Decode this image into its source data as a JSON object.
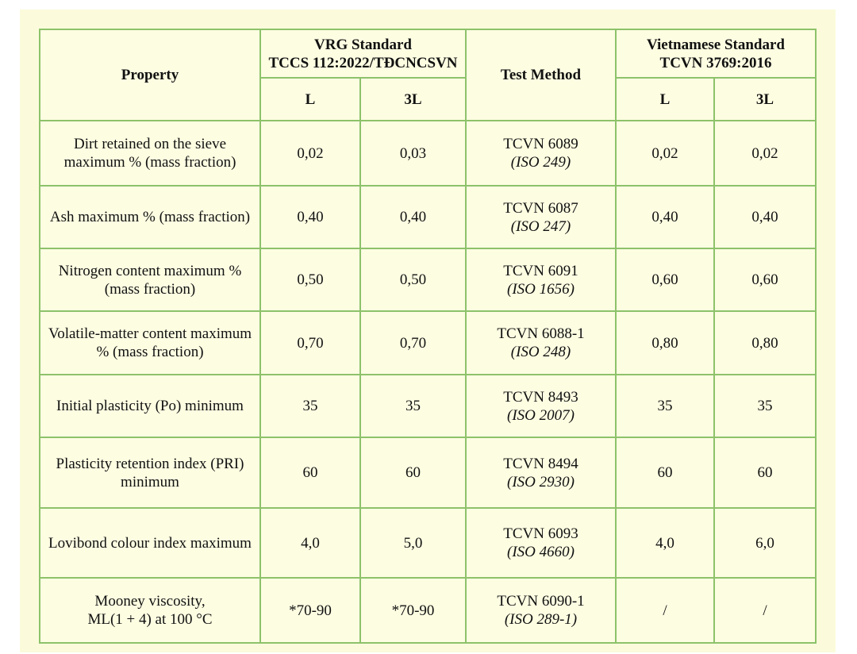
{
  "header": {
    "property": "Property",
    "vrg_title": "VRG Standard",
    "vrg_code": "TCCS 112:2022/TĐCNCSVN",
    "test_method": "Test Method",
    "vn_title": "Vietnamese Standard",
    "vn_code": "TCVN 3769:2016",
    "sub": [
      "L",
      "3L",
      "L",
      "3L"
    ]
  },
  "rows": [
    {
      "prop": [
        "Dirt retained on the sieve",
        "maximum % (mass fraction)"
      ],
      "vrg_l": "0,02",
      "vrg_3l": "0,03",
      "method": "TCVN 6089",
      "iso": "(ISO 249)",
      "vn_l": "0,02",
      "vn_3l": "0,02"
    },
    {
      "prop": [
        "Ash maximum % (mass fraction)"
      ],
      "vrg_l": "0,40",
      "vrg_3l": "0,40",
      "method": "TCVN 6087",
      "iso": "(ISO 247)",
      "vn_l": "0,40",
      "vn_3l": "0,40"
    },
    {
      "prop": [
        "Nitrogen content maximum %",
        "(mass fraction)"
      ],
      "vrg_l": "0,50",
      "vrg_3l": "0,50",
      "method": "TCVN 6091",
      "iso": "(ISO 1656)",
      "vn_l": "0,60",
      "vn_3l": "0,60"
    },
    {
      "prop": [
        "Volatile-matter content maximum",
        "% (mass fraction)"
      ],
      "vrg_l": "0,70",
      "vrg_3l": "0,70",
      "method": "TCVN 6088-1",
      "iso": "(ISO 248)",
      "vn_l": "0,80",
      "vn_3l": "0,80"
    },
    {
      "prop": [
        "Initial plasticity (Po) minimum"
      ],
      "vrg_l": "35",
      "vrg_3l": "35",
      "method": "TCVN 8493",
      "iso": "(ISO 2007)",
      "vn_l": "35",
      "vn_3l": "35"
    },
    {
      "prop": [
        "Plasticity retention index (PRI)",
        "minimum"
      ],
      "vrg_l": "60",
      "vrg_3l": "60",
      "method": "TCVN 8494",
      "iso": "(ISO 2930)",
      "vn_l": "60",
      "vn_3l": "60"
    },
    {
      "prop": [
        "Lovibond colour index maximum"
      ],
      "vrg_l": "4,0",
      "vrg_3l": "5,0",
      "method": "TCVN 6093",
      "iso": "(ISO 4660)",
      "vn_l": "4,0",
      "vn_3l": "6,0"
    },
    {
      "prop": [
        "Mooney viscosity,",
        "ML(1 + 4) at 100 °C"
      ],
      "vrg_l": "*70-90",
      "vrg_3l": "*70-90",
      "method": "TCVN 6090-1",
      "iso": "(ISO 289-1)",
      "vn_l": "/",
      "vn_3l": "/"
    }
  ]
}
